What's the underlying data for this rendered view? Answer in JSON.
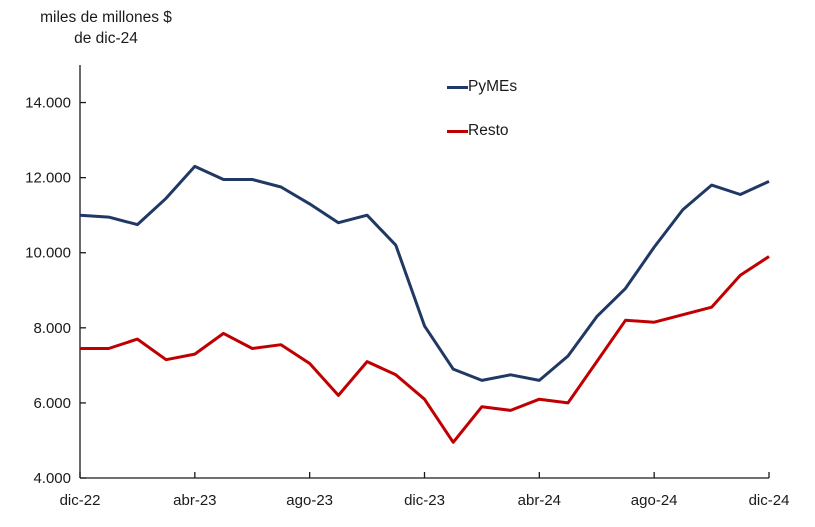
{
  "title": {
    "line1": "miles de millones $",
    "line2": "de dic-24"
  },
  "colors": {
    "pymes_line": "#1f3864",
    "resto_line": "#c00000",
    "axis": "#1a1a1a",
    "text": "#1a1a1a",
    "background": "#ffffff"
  },
  "chart_data": {
    "type": "line",
    "title": "miles de millones $ de dic-24",
    "xlabel": "",
    "ylabel": "miles de millones $ de dic-24",
    "grid": false,
    "legend_position": "top-center",
    "ylim": [
      4000,
      15000
    ],
    "yticks": [
      4000,
      6000,
      8000,
      10000,
      12000,
      14000
    ],
    "ytick_labels": [
      "4.000",
      "6.000",
      "8.000",
      "10.000",
      "12.000",
      "14.000"
    ],
    "x": [
      "dic-22",
      "ene-23",
      "feb-23",
      "mar-23",
      "abr-23",
      "may-23",
      "jun-23",
      "jul-23",
      "ago-23",
      "sep-23",
      "oct-23",
      "nov-23",
      "dic-23",
      "ene-24",
      "feb-24",
      "mar-24",
      "abr-24",
      "may-24",
      "jun-24",
      "jul-24",
      "ago-24",
      "sep-24",
      "oct-24",
      "nov-24",
      "dic-24"
    ],
    "x_tick_indices": [
      0,
      4,
      8,
      12,
      16,
      20,
      24
    ],
    "x_tick_labels": [
      "dic-22",
      "abr-23",
      "ago-23",
      "dic-23",
      "abr-24",
      "ago-24",
      "dic-24"
    ],
    "series": [
      {
        "name": "PyMEs",
        "color": "#1f3864",
        "values": [
          11000,
          10950,
          10750,
          11450,
          12300,
          11950,
          11950,
          11750,
          11300,
          10800,
          11000,
          10200,
          8050,
          6900,
          6600,
          6750,
          6600,
          7250,
          8300,
          9050,
          10150,
          11150,
          11800,
          11550,
          11900
        ]
      },
      {
        "name": "Resto",
        "color": "#c00000",
        "values": [
          7450,
          7450,
          7700,
          7150,
          7300,
          7850,
          7450,
          7550,
          7050,
          6200,
          7100,
          6750,
          6100,
          4950,
          5900,
          5800,
          6100,
          6000,
          7100,
          8200,
          8150,
          8350,
          8550,
          9400,
          9900
        ]
      }
    ]
  }
}
